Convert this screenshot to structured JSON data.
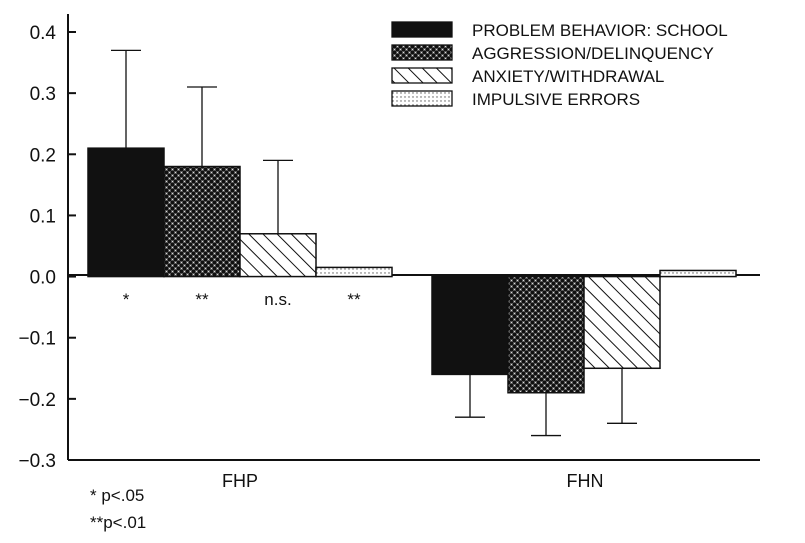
{
  "chart_data": {
    "type": "bar",
    "categories": [
      "FHP",
      "FHN"
    ],
    "ylim": [
      -0.3,
      0.4
    ],
    "yticks": [
      "0.4",
      "0.3",
      "0.2",
      "0.1",
      "0.0",
      "−0.1",
      "−0.2",
      "−0.3"
    ],
    "ytick_values": [
      0.4,
      0.3,
      0.2,
      0.1,
      0.0,
      -0.1,
      -0.2,
      -0.3
    ],
    "grid": false,
    "legend_position": "top-right",
    "series": [
      {
        "name": "PROBLEM BEHAVIOR: SCHOOL",
        "pattern": "solid",
        "values": [
          0.21,
          -0.16
        ],
        "error": [
          0.16,
          0.07
        ]
      },
      {
        "name": "AGGRESSION/DELINQUENCY",
        "pattern": "checker",
        "values": [
          0.18,
          -0.19
        ],
        "error": [
          0.13,
          0.07
        ]
      },
      {
        "name": "ANXIETY/WITHDRAWAL",
        "pattern": "hatch",
        "values": [
          0.07,
          -0.15
        ],
        "error": [
          0.12,
          0.09
        ]
      },
      {
        "name": "IMPULSIVE ERRORS",
        "pattern": "dots",
        "values": [
          0.015,
          0.01
        ],
        "error": [
          0.0,
          0.0
        ]
      }
    ],
    "significance": [
      "*",
      "**",
      "n.s.",
      "**"
    ],
    "notes": [
      "* p<.05",
      "**p<.01"
    ]
  },
  "colors": {
    "ink": "#111111",
    "background": "#ffffff"
  }
}
